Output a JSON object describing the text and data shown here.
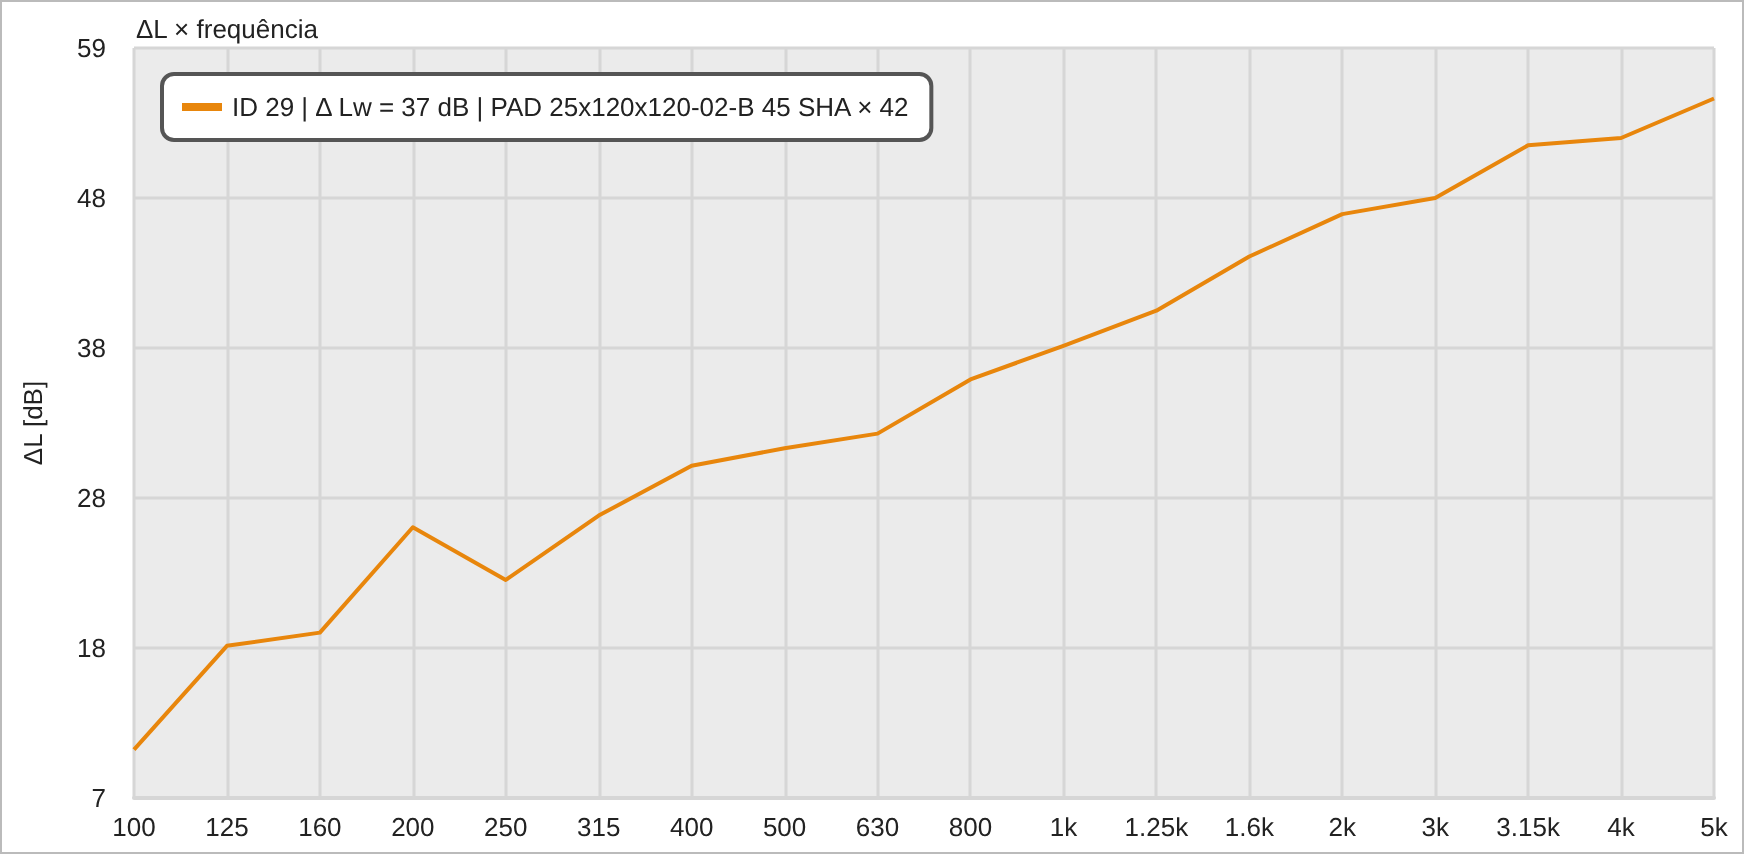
{
  "chart_data": {
    "type": "line",
    "title": "ΔL × frequência",
    "ylabel": "ΔL [dB]",
    "categories": [
      "100",
      "125",
      "160",
      "200",
      "250",
      "315",
      "400",
      "500",
      "630",
      "800",
      "1k",
      "1.25k",
      "1.6k",
      "2k",
      "3k",
      "3.15k",
      "4k",
      "5k"
    ],
    "series": [
      {
        "name": "ID 29 | Δ Lw = 37 dB | PAD 25x120x120-02-B 45 SHA × 42",
        "color": "#e8860c",
        "values": [
          10.7,
          17.8,
          18.7,
          25.9,
          22.3,
          26.7,
          30.1,
          31.3,
          32.3,
          36.0,
          38.3,
          40.7,
          44.4,
          47.3,
          48.4,
          52.0,
          52.5,
          55.2
        ]
      }
    ],
    "ylim": [
      7.4,
      58.65
    ],
    "yticks": [
      {
        "value": 7.4,
        "label": "7"
      },
      {
        "value": 17.65,
        "label": "18"
      },
      {
        "value": 27.9,
        "label": "28"
      },
      {
        "value": 38.15,
        "label": "38"
      },
      {
        "value": 48.4,
        "label": "48"
      },
      {
        "value": 58.65,
        "label": "59"
      }
    ],
    "grid": true,
    "legend": "top left",
    "marker": "none",
    "line_style": "solid"
  }
}
